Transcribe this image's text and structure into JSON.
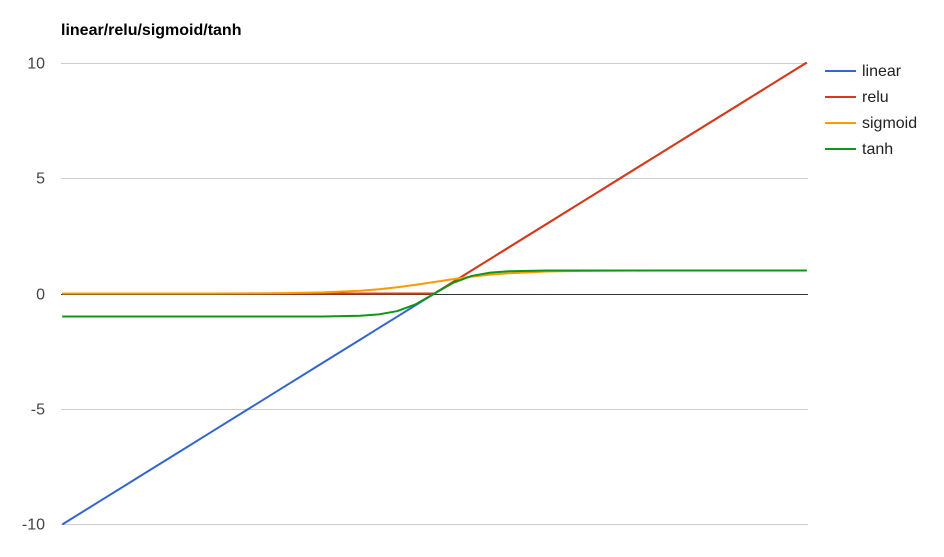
{
  "chart_data": {
    "type": "line",
    "title": "linear/relu/sigmoid/tanh",
    "xlim": [
      -10,
      10
    ],
    "ylim": [
      -10,
      10
    ],
    "yticks": [
      {
        "value": 10,
        "label": "10"
      },
      {
        "value": 5,
        "label": "5"
      },
      {
        "value": 0,
        "label": "0"
      },
      {
        "value": -5,
        "label": "-5"
      },
      {
        "value": -10,
        "label": "-10"
      }
    ],
    "grid": true,
    "legend_position": "right",
    "x": [
      -10,
      -9,
      -8,
      -7,
      -6,
      -5,
      -4,
      -3,
      -2,
      -1.5,
      -1,
      -0.5,
      0,
      0.5,
      1,
      1.5,
      2,
      3,
      4,
      5,
      6,
      7,
      8,
      9,
      10
    ],
    "series": [
      {
        "name": "linear",
        "color": "#3366cc",
        "values": [
          -10,
          -9,
          -8,
          -7,
          -6,
          -5,
          -4,
          -3,
          -2,
          -1.5,
          -1,
          -0.5,
          0,
          0.5,
          1,
          1.5,
          2,
          3,
          4,
          5,
          6,
          7,
          8,
          9,
          10
        ]
      },
      {
        "name": "relu",
        "color": "#dc3912",
        "values": [
          0,
          0,
          0,
          0,
          0,
          0,
          0,
          0,
          0,
          0,
          0,
          0,
          0,
          0.5,
          1,
          1.5,
          2,
          3,
          4,
          5,
          6,
          7,
          8,
          9,
          10
        ]
      },
      {
        "name": "sigmoid",
        "color": "#ff9900",
        "values": [
          4.54e-05,
          0.000123,
          0.000335,
          0.000911,
          0.00247,
          0.00669,
          0.018,
          0.0474,
          0.1192,
          0.1824,
          0.2689,
          0.3775,
          0.5,
          0.6225,
          0.7311,
          0.8176,
          0.8808,
          0.9526,
          0.982,
          0.9933,
          0.9975,
          0.9991,
          0.9997,
          0.9999,
          1
        ]
      },
      {
        "name": "tanh",
        "color": "#109618",
        "values": [
          -1,
          -1,
          -1,
          -1,
          -1,
          -0.9999,
          -0.9993,
          -0.9951,
          -0.964,
          -0.9051,
          -0.7616,
          -0.4621,
          0,
          0.4621,
          0.7616,
          0.9051,
          0.964,
          0.9951,
          0.9993,
          0.9999,
          1,
          1,
          1,
          1,
          1
        ]
      }
    ]
  }
}
